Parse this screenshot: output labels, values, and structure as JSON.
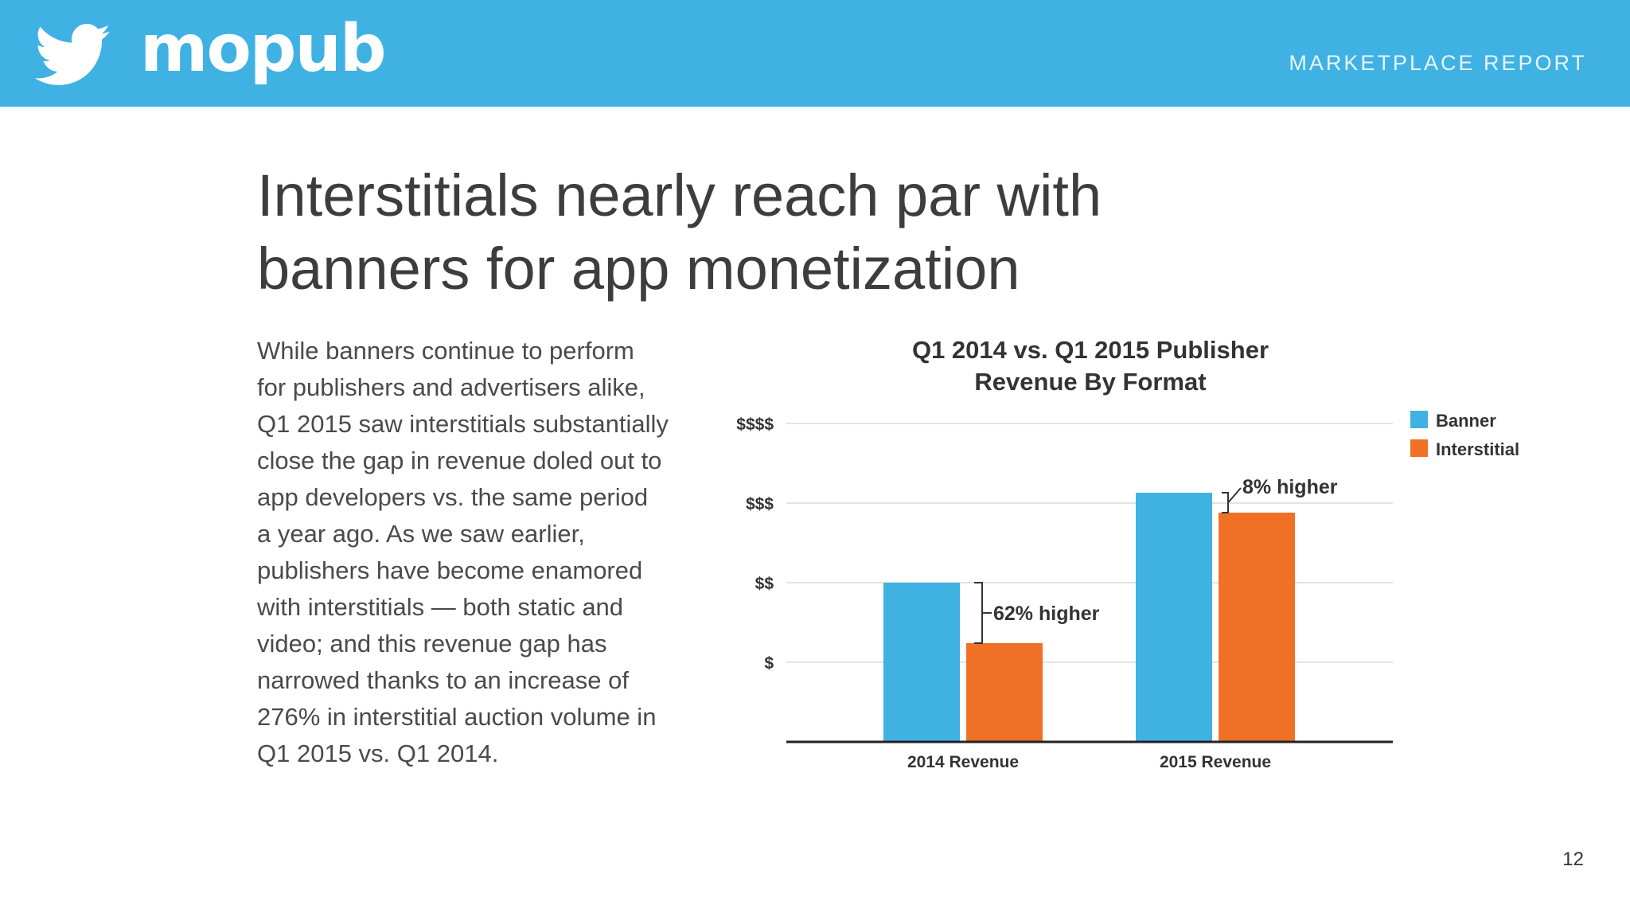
{
  "header": {
    "brand": "mopub",
    "report_label": "MARKETPLACE REPORT",
    "bird_icon": "twitter-bird-icon",
    "background_color": "#3fb2e3"
  },
  "title": {
    "line1": "Interstitials nearly reach par with",
    "line2": "banners for app monetization"
  },
  "body": {
    "lines": [
      "While banners continue to perform",
      "for publishers and advertisers alike,",
      "Q1 2015 saw interstitials substantially",
      "close the gap in revenue doled out to",
      "app developers vs. the same period",
      "a year ago. As we saw earlier,",
      "publishers have become enamored",
      "with interstitials — both static and",
      "video; and this revenue gap has",
      "narrowed thanks to an increase of",
      "276% in interstitial auction volume in",
      "Q1 2015 vs. Q1 2014."
    ]
  },
  "chart_data": {
    "type": "bar",
    "title_lines": [
      "Q1 2014 vs. Q1 2015 Publisher",
      "Revenue By Format"
    ],
    "categories": [
      "2014 Revenue",
      "2015 Revenue"
    ],
    "series": [
      {
        "name": "Banner",
        "color": "#3fb2e3",
        "values": [
          2.0,
          3.13
        ]
      },
      {
        "name": "Interstitial",
        "color": "#f07026",
        "values": [
          1.24,
          2.88
        ]
      }
    ],
    "ylim": [
      0,
      4
    ],
    "yticks": [
      {
        "value": 1,
        "label": "$"
      },
      {
        "value": 2,
        "label": "$$"
      },
      {
        "value": 3,
        "label": "$$$"
      },
      {
        "value": 4,
        "label": "$$$$"
      }
    ],
    "grid": true,
    "legend_position": "top-right",
    "annotations": [
      {
        "category": "2014 Revenue",
        "text": "62% higher"
      },
      {
        "category": "2015 Revenue",
        "text": "8% higher"
      }
    ]
  },
  "page_number": "12"
}
